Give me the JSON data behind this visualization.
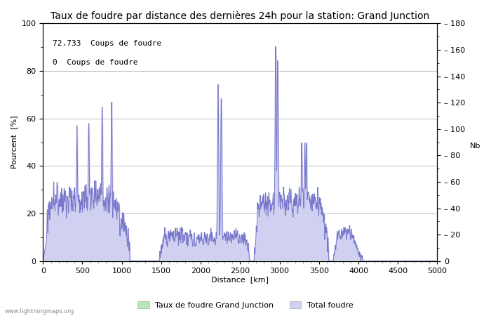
{
  "title": "Taux de foudre par distance des dernières 24h pour la station: Grand Junction",
  "xlabel": "Distance  [km]",
  "ylabel_left": "Pourcent  [%]",
  "ylabel_right": "Nb",
  "annotation_line1": "72.733  Coups de foudre",
  "annotation_line2": "0  Coups de foudre",
  "xlim": [
    0,
    5000
  ],
  "ylim_left": [
    0,
    100
  ],
  "ylim_right": [
    0,
    180
  ],
  "xticks": [
    0,
    500,
    1000,
    1500,
    2000,
    2500,
    3000,
    3500,
    4000,
    4500,
    5000
  ],
  "yticks_left": [
    0,
    20,
    40,
    60,
    80,
    100
  ],
  "yticks_right": [
    0,
    20,
    40,
    60,
    80,
    100,
    120,
    140,
    160,
    180
  ],
  "fill_color_green": "#b8e8b8",
  "fill_color_blue": "#d0d0f0",
  "line_color": "#7777cc",
  "background_color": "#ffffff",
  "grid_color": "#bbbbbb",
  "legend_label_green": "Taux de foudre Grand Junction",
  "legend_label_blue": "Total foudre",
  "watermark": "www.lightningmaps.org",
  "title_fontsize": 10,
  "axis_fontsize": 8,
  "tick_fontsize": 8,
  "annotation_fontsize": 8,
  "figsize": [
    7.0,
    4.5
  ],
  "dpi": 100
}
